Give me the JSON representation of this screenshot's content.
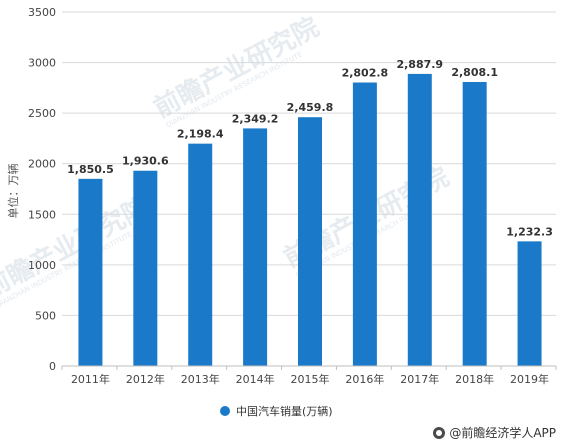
{
  "chart_data": {
    "type": "bar",
    "categories": [
      "2011年",
      "2012年",
      "2013年",
      "2014年",
      "2015年",
      "2016年",
      "2017年",
      "2018年",
      "2019年"
    ],
    "series": [
      {
        "name": "中国汽车销量(万辆)",
        "values": [
          1850.5,
          1930.6,
          2198.4,
          2349.2,
          2459.8,
          2802.8,
          2887.9,
          2808.1,
          1232.3
        ],
        "data_labels": [
          "1,850.5",
          "1,930.6",
          "2,198.4",
          "2,349.2",
          "2,459.8",
          "2,802.8",
          "2,887.9",
          "2,808.1",
          "1,232.3"
        ],
        "color": "#1a7ac9"
      }
    ],
    "ylabel": "单位：万辆",
    "ylim": [
      0,
      3500
    ],
    "yticks": [
      0,
      500,
      1000,
      1500,
      2000,
      2500,
      3000,
      3500
    ],
    "grid": true,
    "legend_position": "bottom"
  },
  "watermark": {
    "text": "前瞻产业研究院",
    "sub": "QIANZHAN INDUSTRY RESEARCH INSTITUTE"
  },
  "credit": "@前瞻经济学人APP",
  "colors": {
    "bar": "#1a7ac9",
    "grid": "#d9d9d9",
    "axis": "#bfbfbf"
  }
}
